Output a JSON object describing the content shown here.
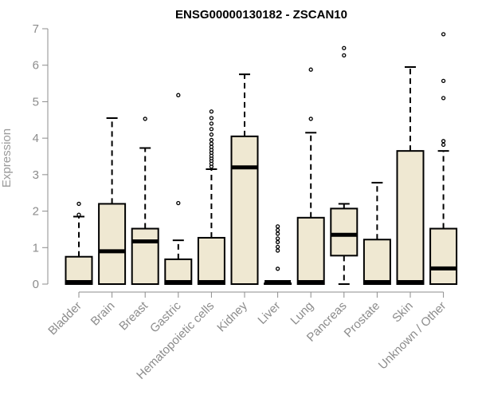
{
  "chart_data": {
    "type": "boxplot",
    "title": "ENSG00000130182 - ZSCAN10",
    "xlabel": "",
    "ylabel": "Expression",
    "ylim": [
      0,
      7
    ],
    "yticks": [
      0,
      1,
      2,
      3,
      4,
      5,
      6,
      7
    ],
    "grid": false,
    "legend": "none",
    "box_fill": "#efe8d2",
    "categories": [
      "Bladder",
      "Brain",
      "Breast",
      "Gastric",
      "Hematopoietic cells",
      "Kidney",
      "Liver",
      "Lung",
      "Pancreas",
      "Prostate",
      "Skin",
      "Unknown / Other"
    ],
    "boxes": [
      {
        "category": "Bladder",
        "min": 0,
        "q1": 0,
        "median": 0.02,
        "q3": 0.75,
        "max": 1.85,
        "outliers": [
          1.9,
          2.2
        ]
      },
      {
        "category": "Brain",
        "min": 0,
        "q1": 0,
        "median": 0.9,
        "q3": 2.2,
        "max": 4.55,
        "outliers": []
      },
      {
        "category": "Breast",
        "min": 0,
        "q1": 0,
        "median": 1.17,
        "q3": 1.52,
        "max": 3.73,
        "outliers": [
          4.53
        ]
      },
      {
        "category": "Gastric",
        "min": 0,
        "q1": 0,
        "median": 0.02,
        "q3": 0.68,
        "max": 1.2,
        "outliers": [
          2.22,
          5.18
        ]
      },
      {
        "category": "Hematopoietic cells",
        "min": 0,
        "q1": 0,
        "median": 0.02,
        "q3": 1.27,
        "max": 3.15,
        "outliers": [
          3.22,
          3.3,
          3.38,
          3.45,
          3.52,
          3.6,
          3.68,
          3.76,
          3.85,
          3.95,
          4.1,
          4.25,
          4.4,
          4.55,
          4.73
        ]
      },
      {
        "category": "Kidney",
        "min": 0,
        "q1": 0,
        "median": 3.2,
        "q3": 4.05,
        "max": 5.75,
        "outliers": []
      },
      {
        "category": "Liver",
        "min": 0,
        "q1": 0,
        "median": 0.02,
        "q3": 0.02,
        "max": 0.02,
        "outliers": [
          0.42,
          0.92,
          1.02,
          1.15,
          1.25,
          1.38,
          1.48,
          1.58
        ]
      },
      {
        "category": "Lung",
        "min": 0,
        "q1": 0,
        "median": 0.02,
        "q3": 1.82,
        "max": 4.15,
        "outliers": [
          4.53,
          5.88
        ]
      },
      {
        "category": "Pancreas",
        "min": 0,
        "q1": 0.78,
        "median": 1.35,
        "q3": 2.07,
        "max": 2.2,
        "outliers": [
          6.27,
          6.47
        ]
      },
      {
        "category": "Prostate",
        "min": 0,
        "q1": 0,
        "median": 0.02,
        "q3": 1.22,
        "max": 2.78,
        "outliers": []
      },
      {
        "category": "Skin",
        "min": 0,
        "q1": 0,
        "median": 0.02,
        "q3": 3.65,
        "max": 5.95,
        "outliers": []
      },
      {
        "category": "Unknown / Other",
        "min": 0,
        "q1": 0,
        "median": 0.43,
        "q3": 1.52,
        "max": 3.65,
        "outliers": [
          3.82,
          3.92,
          5.1,
          5.57,
          6.85
        ]
      }
    ]
  }
}
